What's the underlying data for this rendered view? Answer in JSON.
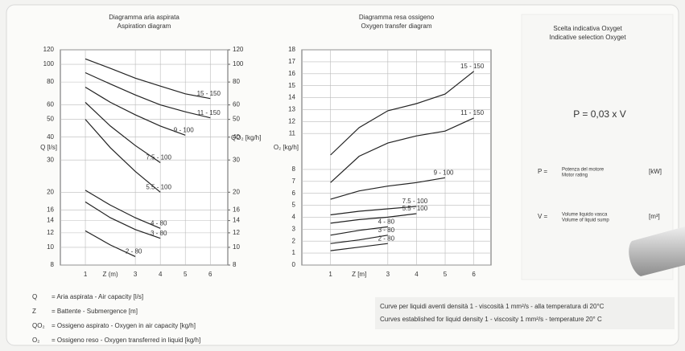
{
  "chart_data": [
    {
      "type": "line",
      "title": "Diagramma aria aspirata",
      "subtitle": "Aspiration diagram",
      "xlabel": "Z (m)",
      "ylabel": "Q [l/s]",
      "y2label": "QO₂ [kg/h]",
      "x": [
        1,
        2,
        3,
        4,
        5,
        6
      ],
      "series": [
        {
          "name": "15 - 150",
          "color": "#222222",
          "values": [
            107,
            95,
            84,
            76,
            69,
            65
          ]
        },
        {
          "name": "11 - 150",
          "color": "#222222",
          "values": [
            90,
            78,
            68,
            60,
            55,
            51
          ]
        },
        {
          "name": "9 - 100",
          "color": "#222222",
          "values": [
            75,
            62,
            53,
            46,
            41,
            null
          ]
        },
        {
          "name": "7.5 - 100",
          "color": "#222222",
          "values": [
            62,
            46,
            36,
            29,
            null,
            null
          ]
        },
        {
          "name": "5.5 - 100",
          "color": "#222222",
          "values": [
            50,
            35,
            26,
            20,
            null,
            null
          ]
        },
        {
          "name": "4 - 80",
          "color": "#222222",
          "values": [
            20.5,
            17,
            14.5,
            12.7,
            null,
            null
          ]
        },
        {
          "name": "3 - 80",
          "color": "#222222",
          "values": [
            17.7,
            14.5,
            12.5,
            11.2,
            null,
            null
          ]
        },
        {
          "name": "2 - 80",
          "color": "#222222",
          "values": [
            12.3,
            10.3,
            8.9,
            null,
            null,
            null
          ]
        }
      ],
      "xlim": [
        0,
        6.7
      ],
      "xticks": [
        1,
        3,
        4,
        5,
        6
      ],
      "ylim": [
        8,
        120
      ],
      "yticks": [
        8,
        10,
        12,
        14,
        16,
        20,
        30,
        40,
        50,
        60,
        80,
        100,
        120
      ],
      "y2lim": [
        8,
        120
      ],
      "y2ticks": [
        8,
        10,
        12,
        14,
        16,
        20,
        30,
        40,
        50,
        60,
        80,
        100,
        120
      ],
      "yscale": "log",
      "grid": true
    },
    {
      "type": "line",
      "title": "Diagramma resa ossigeno",
      "subtitle": "Oxygen transfer diagram",
      "xlabel": "Z [m]",
      "ylabel": "O₂ [kg/h]",
      "x": [
        1,
        2,
        3,
        4,
        5,
        6
      ],
      "series": [
        {
          "name": "15 - 150",
          "color": "#222222",
          "values": [
            9.2,
            11.5,
            12.9,
            13.5,
            14.3,
            16.2
          ]
        },
        {
          "name": "11 - 150",
          "color": "#222222",
          "values": [
            6.9,
            9.1,
            10.2,
            10.8,
            11.2,
            12.3
          ]
        },
        {
          "name": "9 - 100",
          "color": "#222222",
          "values": [
            5.5,
            6.2,
            6.6,
            6.9,
            7.3,
            null
          ]
        },
        {
          "name": "7.5 - 100",
          "color": "#222222",
          "values": [
            4.2,
            4.5,
            4.7,
            4.9,
            null,
            null
          ]
        },
        {
          "name": "5.5 - 100",
          "color": "#222222",
          "values": [
            3.5,
            3.8,
            4.0,
            4.3,
            null,
            null
          ]
        },
        {
          "name": "4 - 80",
          "color": "#222222",
          "values": [
            2.5,
            2.9,
            3.2,
            null,
            null,
            null
          ]
        },
        {
          "name": "3 - 80",
          "color": "#222222",
          "values": [
            1.8,
            2.1,
            2.5,
            null,
            null,
            null
          ]
        },
        {
          "name": "2 - 80",
          "color": "#222222",
          "values": [
            1.2,
            1.5,
            1.8,
            null,
            null,
            null
          ]
        }
      ],
      "xlim": [
        0,
        6.6
      ],
      "xticks": [
        1,
        3,
        4,
        5,
        6
      ],
      "ylim": [
        0,
        18
      ],
      "yticks": [
        0,
        1,
        2,
        3,
        4,
        5,
        6,
        7,
        8,
        11,
        12,
        13,
        14,
        15,
        16,
        17,
        18
      ],
      "yscale": "linear",
      "grid": true
    }
  ],
  "selection": {
    "title": "Scelta indicativa Oxyget",
    "subtitle": "Indicative selection Oxyget",
    "formula": "P = 0,03 x V",
    "rows": [
      {
        "symbol": "P =",
        "text": "Potenza del motore",
        "text_en": "Motor rating",
        "unit": "[kW]"
      },
      {
        "symbol": "V =",
        "text": "Volume liquido vasca",
        "text_en": "Volume of liquid sump",
        "unit": "[m³]"
      }
    ]
  },
  "legend": [
    {
      "symbol": "Q",
      "text": "= Aria aspirata - Air capacity  [l/s]"
    },
    {
      "symbol": "Z",
      "text": "= Battente - Submergence  [m]"
    },
    {
      "symbol": "QO₂",
      "text": "= Ossigeno aspirato - Oxygen in air capacity  [kg/h]"
    },
    {
      "symbol": "O₂",
      "text": "= Ossigeno reso - Oxygen transferred in liquid  [kg/h]"
    }
  ],
  "note": [
    "Curve per liquidi aventi densità 1 - viscosità 1 mm²/s - alla temperatura di 20°C",
    "Curves established for liquid density 1 - viscosity 1 mm²/s - temperature 20° C"
  ]
}
